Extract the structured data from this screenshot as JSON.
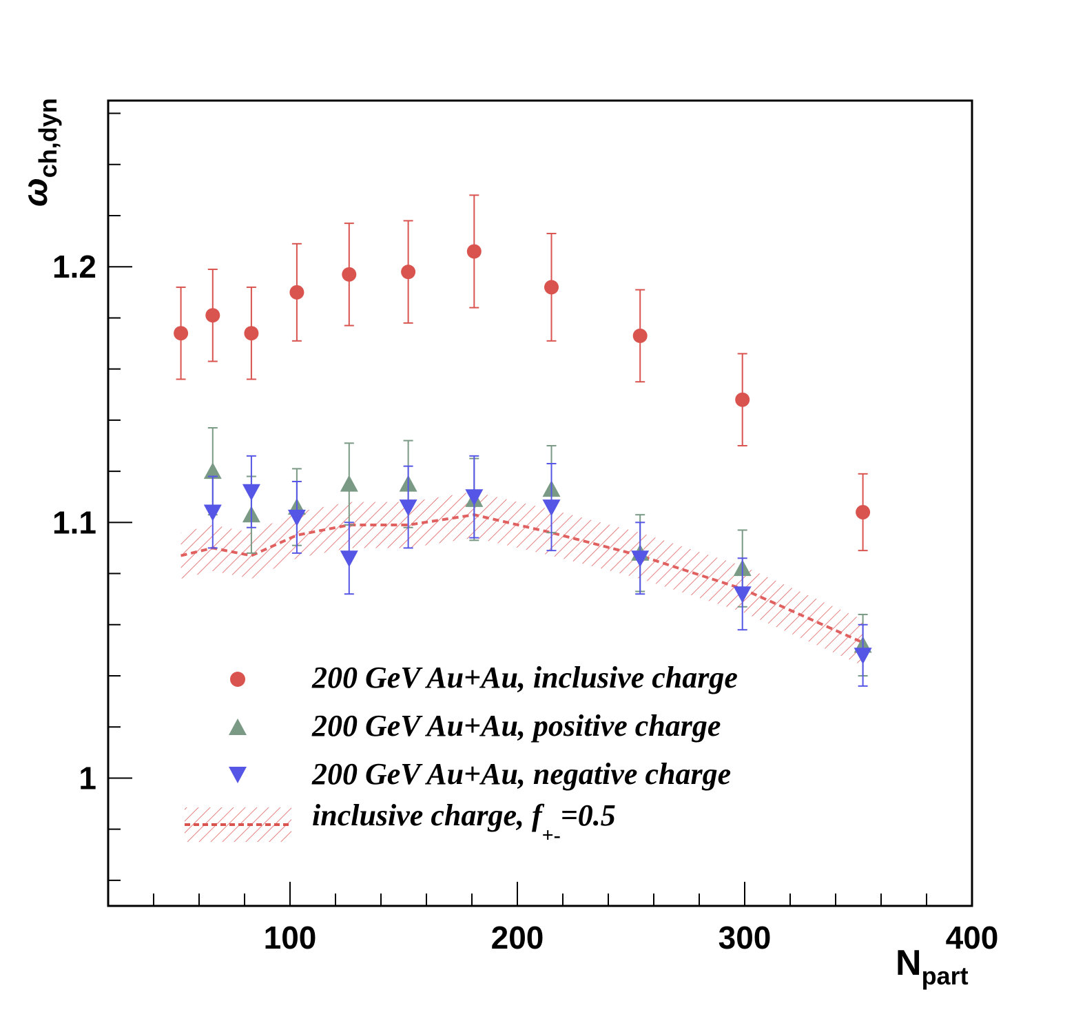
{
  "chart_data": {
    "type": "scatter",
    "xlabel": {
      "main": "N",
      "sub": "part"
    },
    "ylabel": {
      "main": "ω",
      "sub": "ch,dyn"
    },
    "xlim": [
      20,
      400
    ],
    "ylim": [
      0.95,
      1.265
    ],
    "x_ticks": [
      100,
      200,
      300,
      400
    ],
    "y_ticks": [
      1,
      1.1,
      1.2
    ],
    "grid": false,
    "legend_position": "bottom-left",
    "colors": {
      "inclusive": "#d9534f",
      "positive": "#7a9a85",
      "negative": "#5555e6",
      "band": "#e06060"
    },
    "series": [
      {
        "key": "inclusive",
        "name": "200 GeV Au+Au, inclusive charge",
        "marker": "circle",
        "x": [
          52,
          66,
          83,
          103,
          126,
          152,
          181,
          215,
          254,
          299,
          352
        ],
        "y": [
          1.174,
          1.181,
          1.174,
          1.19,
          1.197,
          1.198,
          1.206,
          1.192,
          1.173,
          1.148,
          1.104
        ],
        "err": [
          0.018,
          0.018,
          0.018,
          0.019,
          0.02,
          0.02,
          0.022,
          0.021,
          0.018,
          0.018,
          0.015
        ]
      },
      {
        "key": "positive",
        "name": "200 GeV Au+Au, positive charge",
        "marker": "triangle-up",
        "x": [
          66,
          83,
          103,
          126,
          152,
          181,
          215,
          254,
          299,
          352
        ],
        "y": [
          1.12,
          1.103,
          1.106,
          1.115,
          1.115,
          1.109,
          1.113,
          1.088,
          1.082,
          1.052
        ],
        "err": [
          0.017,
          0.015,
          0.015,
          0.016,
          0.017,
          0.016,
          0.017,
          0.015,
          0.015,
          0.012
        ]
      },
      {
        "key": "negative",
        "name": "200 GeV Au+Au, negative charge",
        "marker": "triangle-down",
        "x": [
          66,
          83,
          103,
          126,
          152,
          181,
          215,
          254,
          299,
          352
        ],
        "y": [
          1.104,
          1.112,
          1.102,
          1.086,
          1.106,
          1.11,
          1.106,
          1.086,
          1.072,
          1.048
        ],
        "err": [
          0.014,
          0.014,
          0.014,
          0.014,
          0.016,
          0.016,
          0.017,
          0.014,
          0.014,
          0.012
        ]
      }
    ],
    "band": {
      "name": "inclusive charge, f",
      "name_sub": "+-",
      "name_suffix": "=0.5",
      "x": [
        52,
        66,
        83,
        103,
        126,
        152,
        181,
        215,
        254,
        299,
        352
      ],
      "y": [
        1.087,
        1.09,
        1.087,
        1.095,
        1.099,
        1.099,
        1.103,
        1.096,
        1.087,
        1.074,
        1.053
      ],
      "halfwidth": 0.009
    }
  }
}
